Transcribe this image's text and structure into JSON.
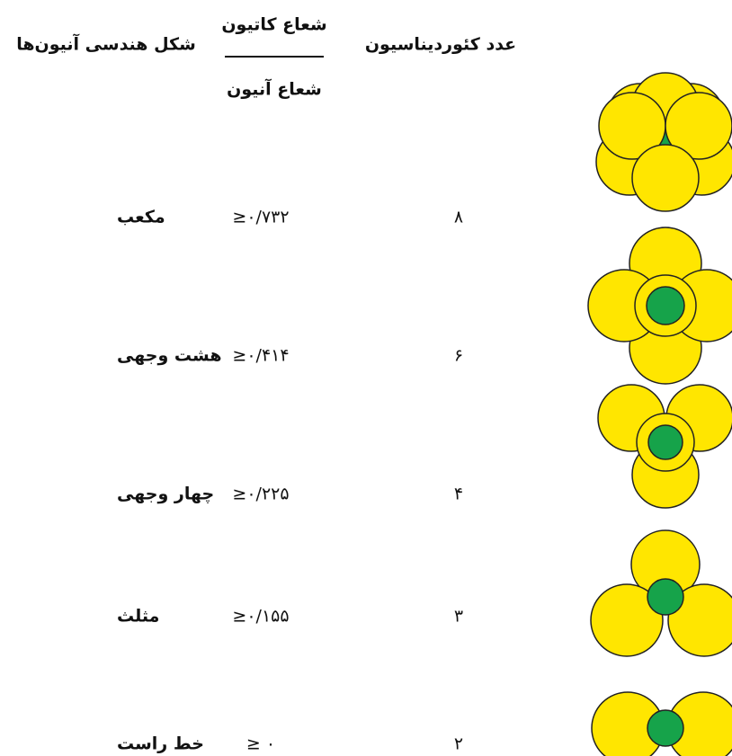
{
  "header": {
    "shape": "شکل هندسی آنیون‌ها",
    "ratio_numerator": "شعاع کاتیون",
    "ratio_denominator": "شعاع آنیون",
    "coordination": "عدد کئوردیناسیون"
  },
  "rows": [
    {
      "shape": "مکعب",
      "ratio": "≥۰/۷۳۲",
      "coordination": "۸"
    },
    {
      "shape": "هشت وجهی",
      "ratio": "≥۰/۴۱۴",
      "coordination": "۶"
    },
    {
      "shape": "چهار وجهی",
      "ratio": "≥۰/۲۲۵",
      "coordination": "۴"
    },
    {
      "shape": "مثلث",
      "ratio": "≥۰/۱۵۵",
      "coordination": "۳"
    },
    {
      "shape": "خط راست",
      "ratio": "≥ ۰",
      "coordination": "۲"
    }
  ]
}
